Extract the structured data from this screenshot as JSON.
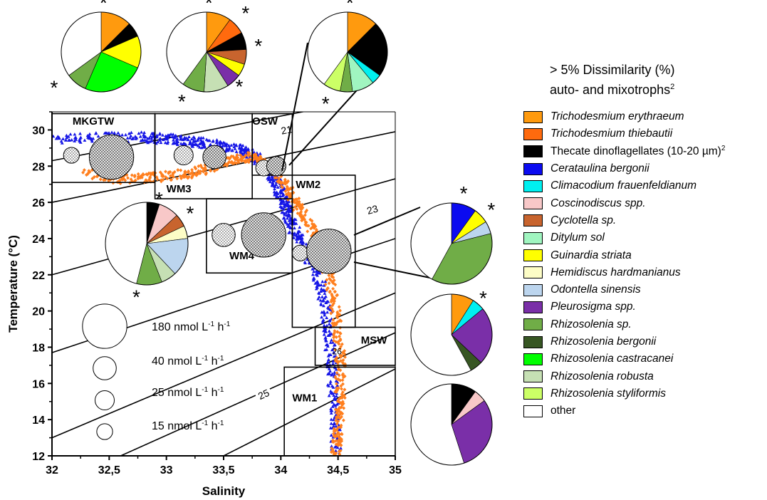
{
  "chart_data": {
    "type": "scatter",
    "xlabel": "Salinity",
    "ylabel": "Temperature (°C)",
    "xlim": [
      32,
      35
    ],
    "ylim": [
      12,
      31
    ],
    "xticks": [
      "32",
      "32,5",
      "33",
      "33,5",
      "34",
      "34,5",
      "35"
    ],
    "xtick_values": [
      32,
      32.5,
      33,
      33.5,
      34,
      34.5,
      35
    ],
    "yticks": [
      "12",
      "14",
      "16",
      "18",
      "20",
      "22",
      "24",
      "26",
      "28",
      "30"
    ],
    "ytick_values": [
      12,
      14,
      16,
      18,
      20,
      22,
      24,
      26,
      28,
      30
    ],
    "density_isolines": [
      {
        "label": "21",
        "x": [
          32,
          35
        ],
        "y": [
          28.3,
          32.0
        ],
        "label_at": [
          34.05,
          30.0
        ]
      },
      {
        "label": "",
        "x": [
          32,
          35
        ],
        "y": [
          26.0,
          29.9
        ]
      },
      {
        "label": "23",
        "x": [
          32,
          35
        ],
        "y": [
          22.0,
          27.3
        ],
        "label_at": [
          34.8,
          25.6
        ]
      },
      {
        "label": "",
        "x": [
          32,
          35
        ],
        "y": [
          17.7,
          24.0
        ]
      },
      {
        "label": "",
        "x": [
          32,
          35
        ],
        "y": [
          13.0,
          21.0
        ]
      },
      {
        "label": "25",
        "x": [
          32.6,
          35
        ],
        "y": [
          12.0,
          18.8
        ],
        "label_at": [
          33.85,
          15.4
        ]
      },
      {
        "label": "",
        "x": [
          33.5,
          35
        ],
        "y": [
          12.0,
          16.8
        ]
      }
    ],
    "isoline_inline_label": {
      "text": "26",
      "x": 34.45,
      "y": 17.6
    },
    "water_masses": [
      {
        "name": "MKGTW",
        "x": [
          32,
          32.9
        ],
        "y": [
          27.1,
          30.9
        ],
        "label_at": [
          32.18,
          30.3
        ]
      },
      {
        "name": "WM3",
        "x": [
          32.9,
          33.75
        ],
        "y": [
          26.2,
          30.9
        ],
        "label_at": [
          33.0,
          26.55
        ]
      },
      {
        "name": "OSW",
        "x": [
          33.75,
          34.1
        ],
        "y": [
          27.5,
          30.9
        ],
        "label_at": [
          33.75,
          30.3
        ]
      },
      {
        "name": "WM2",
        "x": [
          34.1,
          34.65
        ],
        "y": [
          19.1,
          27.5
        ],
        "label_at": [
          34.13,
          26.8
        ]
      },
      {
        "name": "WM4",
        "x": [
          33.35,
          34.1
        ],
        "y": [
          22.1,
          26.2
        ],
        "label_at": [
          33.55,
          22.85
        ]
      },
      {
        "name": "MSW",
        "x": [
          34.3,
          35
        ],
        "y": [
          17.0,
          19.1
        ],
        "label_at": [
          34.7,
          18.2
        ]
      },
      {
        "name": "WM1",
        "x": [
          34.03,
          35
        ],
        "y": [
          12.0,
          16.9
        ],
        "label_at": [
          34.1,
          15.0
        ]
      }
    ],
    "series": [
      {
        "name": "blue triangles",
        "color": "#1515e6",
        "marker": "triangle",
        "path_x": [
          32.0,
          32.4,
          32.8,
          33.0,
          33.2,
          33.4,
          33.6,
          33.75,
          33.85,
          33.95,
          34.0,
          34.05,
          34.1,
          34.2,
          34.3,
          34.38,
          34.42,
          34.45,
          34.47,
          34.48
        ],
        "path_y": [
          29.5,
          29.6,
          29.6,
          29.5,
          29.4,
          29.2,
          29.0,
          28.6,
          28.0,
          27.3,
          26.5,
          25.6,
          24.6,
          23.6,
          22.3,
          20.6,
          18.7,
          16.5,
          14.3,
          12.2
        ]
      },
      {
        "name": "orange diamonds",
        "color": "#ff7f1e",
        "marker": "diamond",
        "path_x": [
          32.3,
          32.6,
          32.9,
          33.2,
          33.4,
          33.6,
          33.8,
          33.95,
          34.08,
          34.2,
          34.32,
          34.42,
          34.48,
          34.52,
          34.52,
          34.5,
          34.48
        ],
        "path_y": [
          27.6,
          27.3,
          27.4,
          27.6,
          28.0,
          28.4,
          28.5,
          27.6,
          26.5,
          25.4,
          24.0,
          22.0,
          19.8,
          17.5,
          15.3,
          13.5,
          12.0
        ]
      }
    ],
    "rate_circles": [
      {
        "x": 32.17,
        "y": 28.6,
        "size_nmol": 15,
        "pattern": "dots"
      },
      {
        "x": 32.52,
        "y": 28.5,
        "size_nmol": 180,
        "pattern": "grid"
      },
      {
        "x": 33.15,
        "y": 28.6,
        "size_nmol": 25,
        "pattern": "dots"
      },
      {
        "x": 33.42,
        "y": 28.5,
        "size_nmol": 40,
        "pattern": "grid"
      },
      {
        "x": 33.85,
        "y": 27.9,
        "size_nmol": 15,
        "pattern": "dots"
      },
      {
        "x": 33.96,
        "y": 28.0,
        "size_nmol": 25,
        "pattern": "grid"
      },
      {
        "x": 33.5,
        "y": 24.2,
        "size_nmol": 40,
        "pattern": "dots"
      },
      {
        "x": 33.85,
        "y": 24.2,
        "size_nmol": 180,
        "pattern": "grid"
      },
      {
        "x": 34.17,
        "y": 23.2,
        "size_nmol": 15,
        "pattern": "dots"
      },
      {
        "x": 34.42,
        "y": 23.3,
        "size_nmol": 180,
        "pattern": "grid"
      }
    ],
    "size_legend": [
      {
        "label_parts": [
          "180 nmol L",
          "-1",
          " h",
          "-1"
        ],
        "size_nmol": 180
      },
      {
        "label_parts": [
          "40 nmol L",
          "-1",
          " h",
          "-1"
        ],
        "size_nmol": 40
      },
      {
        "label_parts": [
          "25 nmol L",
          "-1",
          " h",
          "-1"
        ],
        "size_nmol": 25
      },
      {
        "label_parts": [
          "15 nmol L",
          "-1",
          " h",
          "-1"
        ],
        "size_nmol": 15
      }
    ],
    "pies": [
      {
        "id": "mkgtw",
        "slices": [
          {
            "t": "Trichodesmium erythraeum",
            "v": 12.5
          },
          {
            "t": "Thecate dinoflagellates (10-20 µm)",
            "v": 6
          },
          {
            "t": "Guinardia striata",
            "v": 13
          },
          {
            "t": "Rhizosolenia castracanei",
            "v": 25
          },
          {
            "t": "Rhizosolenia sp.",
            "v": 8.5
          },
          {
            "t": "other",
            "v": 35
          }
        ],
        "stars": [
          [
            0.06,
            1.28
          ],
          [
            -1.18,
            -0.85
          ]
        ]
      },
      {
        "id": "wm3",
        "slices": [
          {
            "t": "Trichodesmium erythraeum",
            "v": 10
          },
          {
            "t": "Trichodesmium thiebautii",
            "v": 7
          },
          {
            "t": "Thecate dinoflagellates (10-20 µm)",
            "v": 7
          },
          {
            "t": "Cyclotella sp.",
            "v": 6
          },
          {
            "t": "Guinardia striata",
            "v": 5
          },
          {
            "t": "Pleurosigma spp.",
            "v": 6
          },
          {
            "t": "Rhizosolenia robusta",
            "v": 10
          },
          {
            "t": "Rhizosolenia sp.",
            "v": 9
          },
          {
            "t": "other",
            "v": 40
          }
        ],
        "stars": [
          [
            0.06,
            1.28
          ],
          [
            0.98,
            1.02
          ],
          [
            1.3,
            0.2
          ],
          [
            0.82,
            -0.82
          ],
          [
            -0.62,
            -1.2
          ]
        ]
      },
      {
        "id": "osw",
        "slices": [
          {
            "t": "Trichodesmium erythraeum",
            "v": 12.5
          },
          {
            "t": "Thecate dinoflagellates (10-20 µm)",
            "v": 22.5
          },
          {
            "t": "Climacodium frauenfeldianum",
            "v": 4
          },
          {
            "t": "Ditylum sol",
            "v": 9
          },
          {
            "t": "Rhizosolenia sp.",
            "v": 5
          },
          {
            "t": "Rhizosolenia styliformis",
            "v": 7
          },
          {
            "t": "other",
            "v": 40
          }
        ],
        "stars": [
          [
            0.06,
            1.28
          ],
          [
            -0.55,
            -1.25
          ]
        ]
      },
      {
        "id": "wm4",
        "slices": [
          {
            "t": "Thecate dinoflagellates (10-20 µm)",
            "v": 5
          },
          {
            "t": "Coscinodiscus spp.",
            "v": 8
          },
          {
            "t": "Cyclotella sp.",
            "v": 5
          },
          {
            "t": "Hemidiscus hardmanianus",
            "v": 5
          },
          {
            "t": "Odontella sinensis",
            "v": 15
          },
          {
            "t": "Rhizosolenia robusta",
            "v": 6
          },
          {
            "t": "Rhizosolenia sp.",
            "v": 10
          },
          {
            "t": "other",
            "v": 46
          }
        ],
        "stars": [
          [
            0.3,
            1.12
          ],
          [
            1.05,
            0.78
          ],
          [
            -0.25,
            -1.25
          ]
        ]
      },
      {
        "id": "wm2",
        "slices": [
          {
            "t": "Cerataulina bergonii",
            "v": 10
          },
          {
            "t": "Guinardia striata",
            "v": 6
          },
          {
            "t": "Odontella sinensis",
            "v": 5
          },
          {
            "t": "Rhizosolenia sp.",
            "v": 37
          },
          {
            "t": "other",
            "v": 42
          }
        ],
        "stars": [
          [
            0.3,
            1.28
          ],
          [
            0.98,
            0.88
          ],
          [
            0.78,
            -1.3
          ]
        ]
      },
      {
        "id": "msw",
        "slices": [
          {
            "t": "Trichodesmium erythraeum",
            "v": 9
          },
          {
            "t": "Climacodium frauenfeldianum",
            "v": 5
          },
          {
            "t": "Pleurosigma spp.",
            "v": 23
          },
          {
            "t": "Rhizosolenia bergonii",
            "v": 5
          },
          {
            "t": "other",
            "v": 58
          }
        ],
        "stars": []
      },
      {
        "id": "wm1",
        "slices": [
          {
            "t": "Thecate dinoflagellates (10-20 µm)",
            "v": 10
          },
          {
            "t": "Coscinodiscus spp.",
            "v": 5
          },
          {
            "t": "Pleurosigma spp.",
            "v": 30
          },
          {
            "t": "other",
            "v": 55
          }
        ],
        "stars": []
      }
    ],
    "star_symbol": "*"
  },
  "legend": {
    "title_line1": "> 5% Dissimilarity (%)",
    "title_line2": "auto- and mixotrophs",
    "title_sup": "2",
    "items": [
      {
        "label": "Trichodesmium erythraeum",
        "color": "#ff9a0e",
        "italic": true,
        "sup": ""
      },
      {
        "label": "Trichodesmium thiebautii",
        "color": "#ff6a0e",
        "italic": true,
        "sup": ""
      },
      {
        "label": "Thecate dinoflagellates (10-20 µm)",
        "color": "#000000",
        "italic": false,
        "sup": "2"
      },
      {
        "label": "Cerataulina bergonii",
        "color": "#0b0bf0",
        "italic": true,
        "sup": ""
      },
      {
        "label": "Climacodium frauenfeldianum",
        "color": "#00f0f0",
        "italic": true,
        "sup": ""
      },
      {
        "label": "Coscinodiscus spp.",
        "color": "#f8c8c8",
        "italic": true,
        "sup": ""
      },
      {
        "label": "Cyclotella sp.",
        "color": "#c8642e",
        "italic": true,
        "sup": ""
      },
      {
        "label": "Ditylum sol",
        "color": "#a0f5c0",
        "italic": true,
        "sup": ""
      },
      {
        "label": "Guinardia striata",
        "color": "#ffff00",
        "italic": true,
        "sup": ""
      },
      {
        "label": "Hemidiscus hardmanianus",
        "color": "#fdfdc6",
        "italic": true,
        "sup": ""
      },
      {
        "label": "Odontella sinensis",
        "color": "#bcd5ee",
        "italic": true,
        "sup": ""
      },
      {
        "label": "Pleurosigma spp.",
        "color": "#7a2fa8",
        "italic": true,
        "sup": ""
      },
      {
        "label": "Rhizosolenia sp.",
        "color": "#70ad47",
        "italic": true,
        "sup": ""
      },
      {
        "label": "Rhizosolenia bergonii",
        "color": "#375623",
        "italic": true,
        "sup": ""
      },
      {
        "label": "Rhizosolenia castracanei",
        "color": "#00ff00",
        "italic": true,
        "sup": ""
      },
      {
        "label": "Rhizosolenia robusta",
        "color": "#c6e0b4",
        "italic": true,
        "sup": ""
      },
      {
        "label": "Rhizosolenia styliformis",
        "color": "#ccff66",
        "italic": true,
        "sup": ""
      },
      {
        "label": "other",
        "color": "#ffffff",
        "italic": false,
        "sup": ""
      }
    ]
  }
}
